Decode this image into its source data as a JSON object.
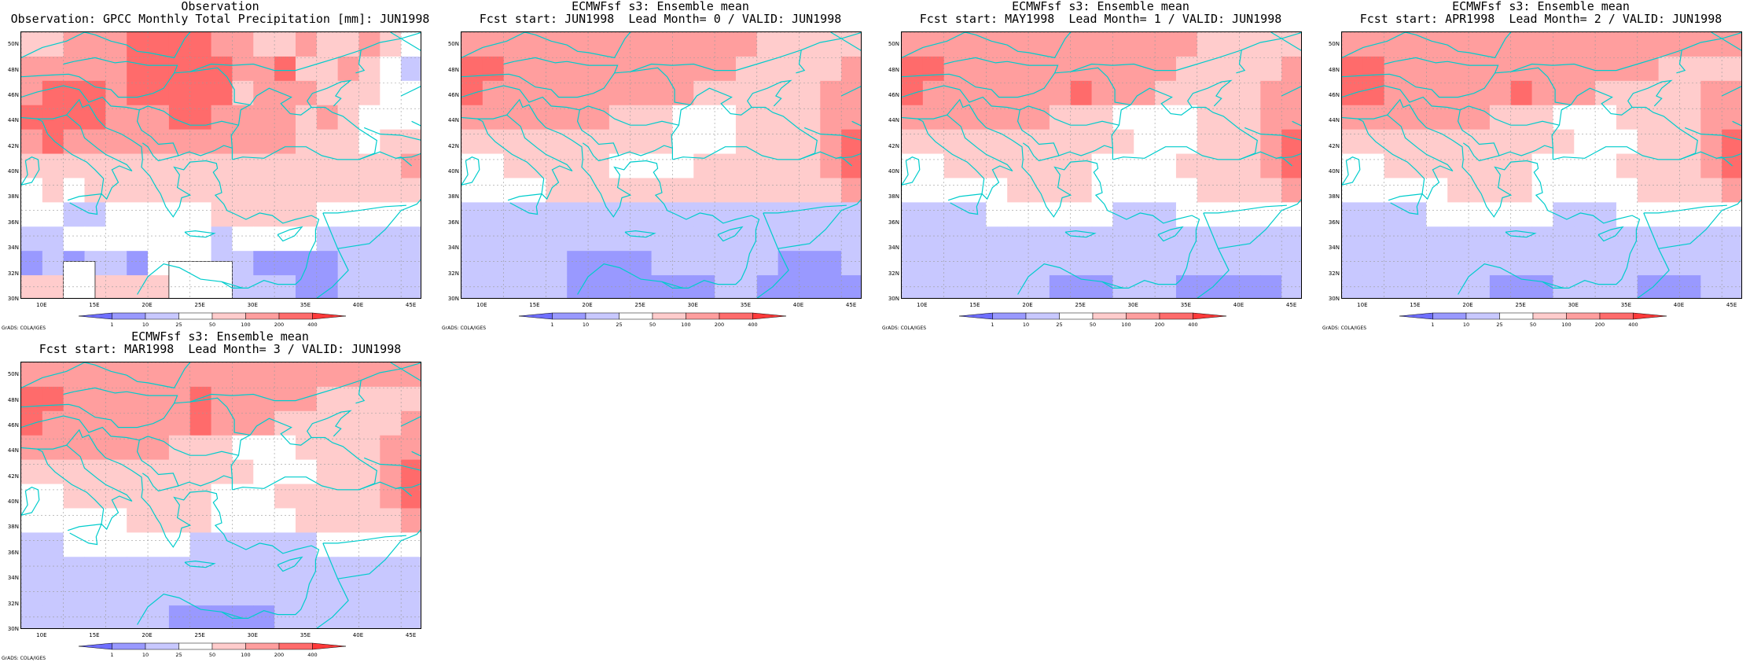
{
  "colors": {
    "coast": "#00cccc",
    "grid": "#9a9a9a",
    "scale": [
      "#6f6fff",
      "#9999ff",
      "#c8c8ff",
      "#ffffff",
      "#ffcccc",
      "#ff9e9e",
      "#ff6b6b",
      "#ff3a3a"
    ]
  },
  "colorbar": {
    "labels": [
      "1",
      "10",
      "25",
      "50",
      "100",
      "200",
      "400"
    ]
  },
  "credit": "GrADS: COLA/IGES",
  "axes": {
    "lat_labels": [
      "50N",
      "48N",
      "46N",
      "44N",
      "42N",
      "40N",
      "38N",
      "36N",
      "34N",
      "32N",
      "30N"
    ],
    "lon_labels": [
      "10E",
      "15E",
      "20E",
      "25E",
      "30E",
      "35E",
      "40E",
      "45E"
    ]
  },
  "chart_data": [
    {
      "type": "heatmap",
      "title": "Observation",
      "subtitle": "Observation: GPCC Monthly Total Precipitation [mm]: JUN1998",
      "xlim": [
        8,
        46
      ],
      "ylim": [
        30,
        51
      ],
      "grid": true,
      "grid_lons": [
        8,
        12,
        16,
        20,
        24,
        28,
        32,
        36,
        40,
        44
      ],
      "grid_lats": [
        31,
        33,
        35,
        37,
        39,
        41,
        43,
        45,
        47,
        49,
        51
      ],
      "rows": [
        "4455566665544544543",
        "5555566666556445432",
        "5666566666455544433",
        "6666555665555454333",
        "5655555555555444344",
        "4444444444444444445",
        "3434444444444444444",
        "3322333334444433333",
        "2233333332333322222",
        "1212213332211112222",
        "4444444444222112222"
      ],
      "missing_boxes": [
        [
          12,
          15,
          27,
          33
        ],
        [
          22,
          28,
          30,
          33
        ]
      ]
    },
    {
      "type": "heatmap",
      "title": "ECMWFsf s3: Ensemble mean",
      "subtitle": "Fcst start: JUN1998  Lead Month= 0 / VALID: JUN1998",
      "xlim": [
        8,
        46
      ],
      "ylim": [
        30,
        51
      ],
      "grid": true,
      "grid_lons": [
        8,
        12,
        16,
        20,
        24,
        28,
        32,
        36,
        40,
        44
      ],
      "grid_lats": [
        31,
        33,
        35,
        37,
        39,
        41,
        43,
        45,
        47,
        49,
        51
      ],
      "rows": [
        "5555555555555544444",
        "6655555555555444445",
        "6555555555544444455",
        "5555555444333444455",
        "4444444444333444456",
        "3344444333344444456",
        "3333444444444444445",
        "2222222222222222222",
        "2222222222222222222",
        "2222211112222221112",
        "2222211111112211111"
      ]
    },
    {
      "type": "heatmap",
      "title": "ECMWFsf s3: Ensemble mean",
      "subtitle": "Fcst start: MAY1998  Lead Month= 1 / VALID: JUN1998",
      "xlim": [
        8,
        46
      ],
      "ylim": [
        30,
        51
      ],
      "grid": true,
      "grid_lons": [
        8,
        12,
        16,
        20,
        24,
        28,
        32,
        36,
        40,
        44
      ],
      "grid_lats": [
        31,
        33,
        35,
        37,
        39,
        41,
        43,
        45,
        47,
        49,
        51
      ],
      "rows": [
        "5555555555555544444",
        "6655555555555444445",
        "6555555565554444455",
        "5555555444333344455",
        "4444444444433344456",
        "3344444443333444456",
        "3333344443333344445",
        "2222333333222333333",
        "2222222222222222222",
        "2222222222222222222",
        "2222222111222111112"
      ]
    },
    {
      "type": "heatmap",
      "title": "ECMWFsf s3: Ensemble mean",
      "subtitle": "Fcst start: APR1998  Lead Month= 2 / VALID: JUN1998",
      "xlim": [
        8,
        46
      ],
      "ylim": [
        30,
        51
      ],
      "grid": true,
      "grid_lons": [
        8,
        12,
        16,
        20,
        24,
        28,
        32,
        36,
        40,
        44
      ],
      "grid_lats": [
        31,
        33,
        35,
        37,
        39,
        41,
        43,
        45,
        47,
        49,
        51
      ],
      "rows": [
        "5555555555555555555",
        "6655555555555554444",
        "6655555565554444455",
        "5555555444333444455",
        "4444444444433344456",
        "3344444443333444456",
        "3333344443333344445",
        "2222333333222333333",
        "2222222222222222222",
        "2222222222222222222",
        "2222222111222211122"
      ]
    },
    {
      "type": "heatmap",
      "title": "ECMWFsf s3: Ensemble mean",
      "subtitle": "Fcst start: MAR1998  Lead Month= 3 / VALID: JUN1998",
      "xlim": [
        8,
        46
      ],
      "ylim": [
        30,
        51
      ],
      "grid": true,
      "grid_lons": [
        8,
        12,
        16,
        20,
        24,
        28,
        32,
        36,
        40,
        44
      ],
      "grid_lats": [
        31,
        33,
        35,
        37,
        39,
        41,
        43,
        45,
        47,
        49,
        51
      ],
      "rows": [
        "5555555555555555555",
        "6655555565555544444",
        "6555555565554444445",
        "5555555444333444455",
        "4444444444433344456",
        "3344444443334444456",
        "3333344443333444445",
        "2233333322222233333",
        "2222222222222222222",
        "2222222222222222222",
        "2222222111112222222"
      ]
    }
  ]
}
